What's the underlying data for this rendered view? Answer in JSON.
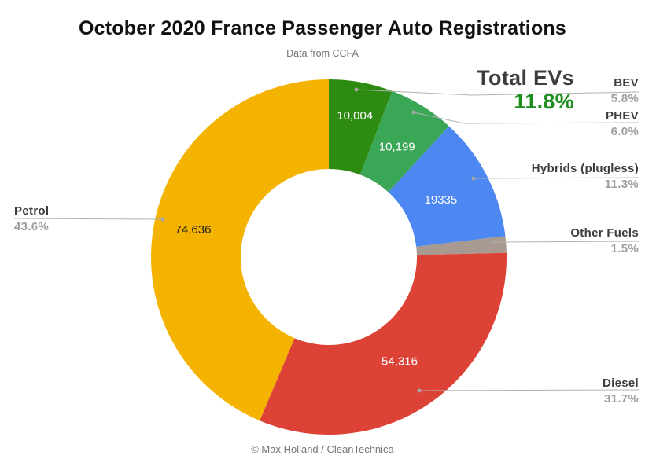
{
  "header": {
    "title": "October 2020 France Passenger Auto Registrations",
    "subtitle": "Data from CCFA"
  },
  "footer": {
    "credit": "© Max Holland / CleanTechnica"
  },
  "annotation": {
    "label": "Total EVs",
    "value": "11.8%",
    "color": "#1e8e1e"
  },
  "chart_data": {
    "type": "pie",
    "donut": true,
    "title": "October 2020 France Passenger Auto Registrations",
    "subtitle": "Data from CCFA",
    "legend_position": "none",
    "start_angle": "top, clockwise",
    "slices": [
      {
        "label": "BEV",
        "value": 10004,
        "value_label": "10,004",
        "pct": 5.8,
        "percent": "5.8%",
        "color": "#2e8b12",
        "value_color": "#ffffff"
      },
      {
        "label": "PHEV",
        "value": 10199,
        "value_label": "10,199",
        "pct": 6.0,
        "percent": "6.0%",
        "color": "#3aa757",
        "value_color": "#ffffff"
      },
      {
        "label": "Hybrids (plugless)",
        "value": 19335,
        "value_label": "19335",
        "pct": 11.3,
        "percent": "11.3%",
        "color": "#4d87f1",
        "value_color": "#ffffff"
      },
      {
        "label": "Other Fuels",
        "value": null,
        "value_label": "",
        "pct": 1.5,
        "percent": "1.5%",
        "color": "#a89a90",
        "value_color": "#ffffff"
      },
      {
        "label": "Diesel",
        "value": 54316,
        "value_label": "54,316",
        "pct": 31.7,
        "percent": "31.7%",
        "color": "#dd4236",
        "value_color": "#ffffff"
      },
      {
        "label": "Petrol",
        "value": 74636,
        "value_label": "74,636",
        "pct": 43.6,
        "percent": "43.6%",
        "color": "#f5b301",
        "value_color": "#212121"
      }
    ],
    "total_evs_annotation": {
      "label": "Total EVs",
      "value": "11.8%"
    }
  }
}
